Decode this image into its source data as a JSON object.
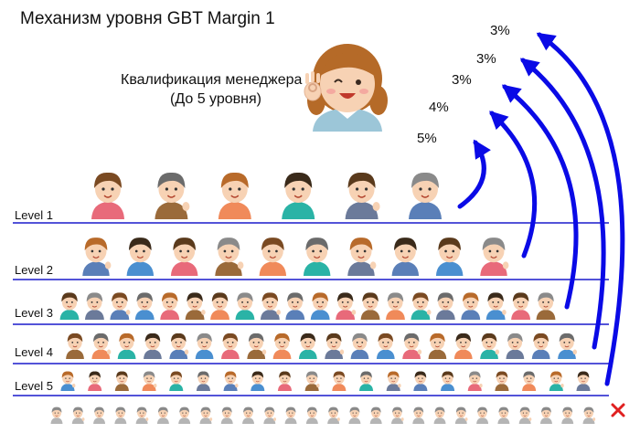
{
  "title": "Механизм уровня GBT Margin 1",
  "manager": {
    "line1": "Квалификация менеджера",
    "line2": "(До 5 уровня)"
  },
  "levels": [
    {
      "label": "Level 1",
      "count": 6
    },
    {
      "label": "Level 2",
      "count": 10
    },
    {
      "label": "Level 3",
      "count": 20
    },
    {
      "label": "Level 4",
      "count": 20
    },
    {
      "label": "Level 5",
      "count": 20
    }
  ],
  "below_row_count": 26,
  "percentages": [
    "5%",
    "4%",
    "3%",
    "3%",
    "3%"
  ],
  "colors": {
    "line": "#1a1acc",
    "arrow": "#0a0ae6",
    "cross": "#e02020",
    "muted": "#9a9a9a"
  },
  "icons": {
    "manager": "woman-ok-gesture-icon",
    "person": "person-icon",
    "cross": "cross-icon"
  }
}
